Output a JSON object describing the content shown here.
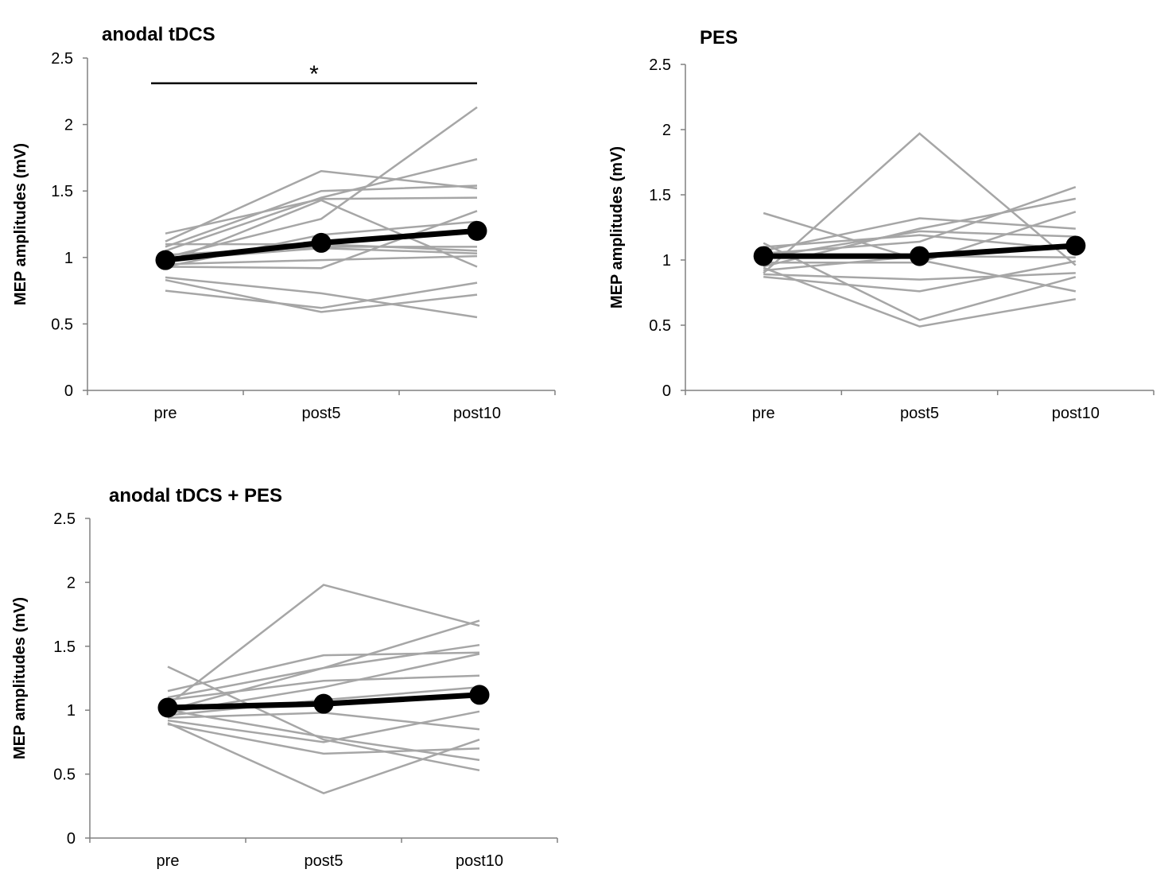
{
  "chart_data": [
    {
      "type": "line",
      "title": "anodal tDCS",
      "ylabel": "MEP amplitudes (mV)",
      "xlabel": "",
      "categories": [
        "pre",
        "post5",
        "post10"
      ],
      "ylim": [
        0,
        2.5
      ],
      "yticks": [
        0,
        0.5,
        1,
        1.5,
        2,
        2.5
      ],
      "yticklabels": [
        "0",
        "0.5",
        "1",
        "1.5",
        "2",
        "2.5"
      ],
      "grid": false,
      "significance": {
        "from": "pre",
        "to": "post10",
        "y": 2.31,
        "label": "*"
      },
      "mean": [
        0.98,
        1.11,
        1.2
      ],
      "subjects": [
        [
          1.18,
          1.44,
          1.45
        ],
        [
          1.12,
          1.65,
          1.52
        ],
        [
          1.08,
          1.5,
          1.54
        ],
        [
          1.05,
          1.45,
          1.74
        ],
        [
          1.0,
          1.29,
          2.13
        ],
        [
          0.96,
          1.43,
          0.93
        ],
        [
          0.93,
          1.17,
          1.27
        ],
        [
          1.1,
          1.1,
          1.05
        ],
        [
          1.02,
          1.08,
          1.08
        ],
        [
          0.98,
          1.07,
          1.03
        ],
        [
          0.95,
          0.98,
          1.01
        ],
        [
          0.93,
          0.92,
          1.35
        ],
        [
          0.85,
          0.73,
          0.55
        ],
        [
          0.83,
          0.59,
          0.72
        ],
        [
          0.75,
          0.62,
          0.81
        ]
      ]
    },
    {
      "type": "line",
      "title": "PES",
      "ylabel": "MEP amplitudes (mV)",
      "xlabel": "",
      "categories": [
        "pre",
        "post5",
        "post10"
      ],
      "ylim": [
        0,
        2.5
      ],
      "yticks": [
        0,
        0.5,
        1,
        1.5,
        2,
        2.5
      ],
      "yticklabels": [
        "0",
        "0.5",
        "1",
        "1.5",
        "2",
        "2.5"
      ],
      "grid": false,
      "mean": [
        1.03,
        1.03,
        1.11
      ],
      "subjects": [
        [
          1.36,
          1.0,
          0.76
        ],
        [
          1.13,
          0.54,
          0.87
        ],
        [
          1.1,
          1.19,
          1.08
        ],
        [
          1.07,
          1.32,
          1.24
        ],
        [
          1.05,
          1.14,
          1.56
        ],
        [
          1.02,
          1.22,
          1.18
        ],
        [
          0.98,
          0.98,
          1.37
        ],
        [
          0.95,
          1.24,
          1.47
        ],
        [
          0.92,
          1.03,
          1.02
        ],
        [
          0.89,
          0.85,
          0.9
        ],
        [
          0.9,
          1.97,
          0.96
        ],
        [
          0.87,
          0.76,
          0.99
        ],
        [
          0.94,
          0.49,
          0.7
        ]
      ]
    },
    {
      "type": "line",
      "title": "anodal tDCS + PES",
      "ylabel": "MEP amplitudes (mV)",
      "xlabel": "",
      "categories": [
        "pre",
        "post5",
        "post10"
      ],
      "ylim": [
        0,
        2.5
      ],
      "yticks": [
        0,
        0.5,
        1,
        1.5,
        2,
        2.5
      ],
      "yticklabels": [
        "0",
        "0.5",
        "1",
        "1.5",
        "2",
        "2.5"
      ],
      "grid": false,
      "mean": [
        1.02,
        1.05,
        1.12
      ],
      "subjects": [
        [
          1.34,
          0.77,
          0.53
        ],
        [
          1.15,
          1.43,
          1.45
        ],
        [
          1.1,
          1.33,
          1.7
        ],
        [
          1.08,
          1.23,
          1.27
        ],
        [
          1.04,
          1.98,
          1.66
        ],
        [
          1.0,
          1.33,
          1.51
        ],
        [
          0.98,
          1.18,
          1.44
        ],
        [
          0.96,
          1.08,
          1.18
        ],
        [
          0.94,
          0.98,
          0.85
        ],
        [
          0.92,
          0.75,
          0.99
        ],
        [
          0.9,
          0.35,
          0.77
        ],
        [
          0.89,
          0.66,
          0.7
        ],
        [
          1.0,
          0.79,
          0.61
        ]
      ]
    }
  ]
}
